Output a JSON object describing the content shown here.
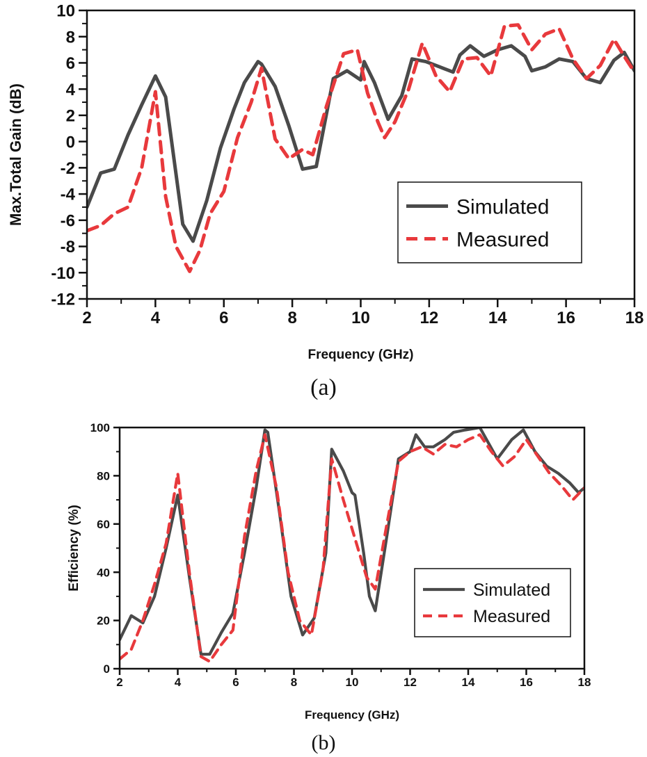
{
  "colors": {
    "simulated": "#4a4a4a",
    "measured": "#e8393c",
    "axis": "#111111"
  },
  "chart_data": [
    {
      "type": "line",
      "caption": "(a)",
      "title": "",
      "xlabel": "Frequency (GHz)",
      "ylabel": "Max.Total Gain (dB)",
      "xlim": [
        2,
        18
      ],
      "ylim": [
        -12,
        10
      ],
      "xticks": [
        2,
        4,
        6,
        8,
        10,
        12,
        14,
        16,
        18
      ],
      "yticks": [
        -12,
        -10,
        -8,
        -6,
        -4,
        -2,
        0,
        2,
        4,
        6,
        8,
        10
      ],
      "legend_position": "bottom-right",
      "series": [
        {
          "name": "Simulated",
          "style": "solid",
          "x": [
            2,
            2.4,
            2.8,
            3.2,
            3.6,
            4.0,
            4.3,
            4.8,
            5.1,
            5.5,
            5.9,
            6.3,
            6.6,
            7.0,
            7.1,
            7.5,
            7.9,
            8.3,
            8.7,
            9.2,
            9.6,
            10.0,
            10.1,
            10.4,
            10.8,
            11.2,
            11.5,
            11.9,
            12.3,
            12.7,
            12.9,
            13.2,
            13.6,
            14.0,
            14.4,
            14.8,
            15.0,
            15.4,
            15.8,
            16.2,
            16.6,
            17.0,
            17.4,
            17.7,
            18.0
          ],
          "values": [
            -5.0,
            -2.4,
            -2.1,
            0.5,
            2.8,
            5.0,
            3.4,
            -6.3,
            -7.6,
            -4.5,
            -0.5,
            2.5,
            4.5,
            6.1,
            5.9,
            4.2,
            1.2,
            -2.1,
            -1.9,
            4.8,
            5.4,
            4.7,
            6.1,
            4.5,
            1.7,
            3.5,
            6.3,
            6.1,
            5.7,
            5.3,
            6.6,
            7.3,
            6.5,
            7.0,
            7.3,
            6.5,
            5.4,
            5.7,
            6.3,
            6.1,
            4.8,
            4.5,
            6.2,
            6.8,
            5.4
          ]
        },
        {
          "name": "Measured",
          "style": "dashed",
          "x": [
            2,
            2.4,
            2.8,
            3.2,
            3.6,
            4.0,
            4.3,
            4.6,
            5.0,
            5.3,
            5.6,
            6.0,
            6.4,
            6.8,
            7.1,
            7.5,
            7.9,
            8.3,
            8.6,
            9.0,
            9.5,
            9.9,
            10.2,
            10.5,
            10.7,
            11.0,
            11.4,
            11.8,
            12.2,
            12.6,
            13.0,
            13.4,
            13.8,
            14.2,
            14.6,
            15.0,
            15.4,
            15.8,
            16.2,
            16.6,
            17.0,
            17.4,
            17.7,
            18.0
          ],
          "values": [
            -6.8,
            -6.4,
            -5.5,
            -5.0,
            -2.0,
            3.8,
            -4.2,
            -8.0,
            -9.9,
            -8.3,
            -5.5,
            -3.8,
            0.3,
            3.0,
            5.6,
            0.2,
            -1.3,
            -0.6,
            -1.0,
            2.7,
            6.7,
            7.0,
            3.7,
            1.5,
            0.3,
            1.5,
            4.0,
            7.5,
            5.0,
            3.8,
            6.3,
            6.4,
            5.0,
            8.8,
            8.9,
            7.0,
            8.2,
            8.6,
            6.3,
            4.8,
            5.8,
            7.8,
            6.5,
            5.3
          ]
        }
      ]
    },
    {
      "type": "line",
      "caption": "(b)",
      "title": "",
      "xlabel": "Frequency (GHz)",
      "ylabel": "Efficiency (%)",
      "xlim": [
        2,
        18
      ],
      "ylim": [
        0,
        100
      ],
      "xticks": [
        2,
        4,
        6,
        8,
        10,
        12,
        14,
        16,
        18
      ],
      "yticks": [
        0,
        20,
        40,
        60,
        80,
        100
      ],
      "legend_position": "bottom-right",
      "series": [
        {
          "name": "Simulated",
          "style": "solid",
          "x": [
            2,
            2.4,
            2.8,
            3.2,
            3.6,
            4.0,
            4.4,
            4.8,
            5.1,
            5.5,
            5.9,
            6.3,
            6.7,
            7.0,
            7.1,
            7.5,
            7.9,
            8.3,
            8.7,
            9.1,
            9.3,
            9.7,
            10.0,
            10.1,
            10.4,
            10.6,
            10.8,
            11.2,
            11.6,
            12.0,
            12.2,
            12.5,
            12.8,
            13.2,
            13.5,
            13.9,
            14.4,
            15.0,
            15.5,
            15.9,
            16.3,
            16.7,
            17.1,
            17.5,
            17.8,
            18.0
          ],
          "values": [
            12,
            22,
            19,
            30,
            50,
            72,
            38,
            6,
            6,
            15,
            23,
            48,
            75,
            99,
            98,
            65,
            30,
            14,
            21,
            48,
            91,
            82,
            73,
            72,
            48,
            30,
            24,
            55,
            87,
            90,
            97,
            92,
            92,
            95,
            98,
            99,
            100,
            87,
            95,
            99,
            90,
            84,
            81,
            77,
            73,
            75
          ]
        },
        {
          "name": "Measured",
          "style": "dashed",
          "x": [
            2,
            2.4,
            2.8,
            3.2,
            3.6,
            4.0,
            4.4,
            4.8,
            5.1,
            5.5,
            5.9,
            6.3,
            6.7,
            7.0,
            7.4,
            7.8,
            8.2,
            8.6,
            9.0,
            9.3,
            9.7,
            10.1,
            10.5,
            10.8,
            11.2,
            11.6,
            12.0,
            12.4,
            12.8,
            13.2,
            13.6,
            14.0,
            14.4,
            14.8,
            15.2,
            15.6,
            16.0,
            16.4,
            16.8,
            17.2,
            17.6,
            18.0
          ],
          "values": [
            4,
            8,
            20,
            35,
            52,
            81,
            40,
            5,
            3,
            10,
            16,
            55,
            82,
            97,
            75,
            40,
            20,
            14,
            41,
            87,
            70,
            54,
            38,
            33,
            60,
            86,
            90,
            92,
            89,
            93,
            92,
            95,
            97,
            90,
            84,
            88,
            95,
            88,
            81,
            76,
            70,
            75
          ]
        }
      ]
    }
  ]
}
